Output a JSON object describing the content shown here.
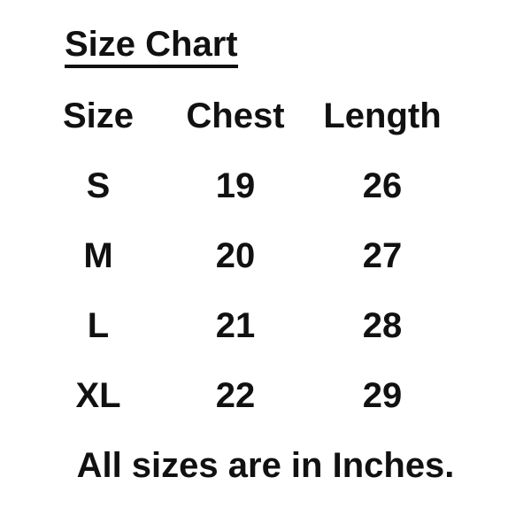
{
  "title": "Size Chart",
  "table": {
    "headers": [
      "Size",
      "Chest",
      "Length"
    ],
    "rows": [
      [
        "S",
        "19",
        "26"
      ],
      [
        "M",
        "20",
        "27"
      ],
      [
        "L",
        "21",
        "28"
      ],
      [
        "XL",
        "22",
        "29"
      ]
    ]
  },
  "footer": "All sizes are in Inches.",
  "colors": {
    "text": "#111111",
    "background": "#ffffff"
  }
}
